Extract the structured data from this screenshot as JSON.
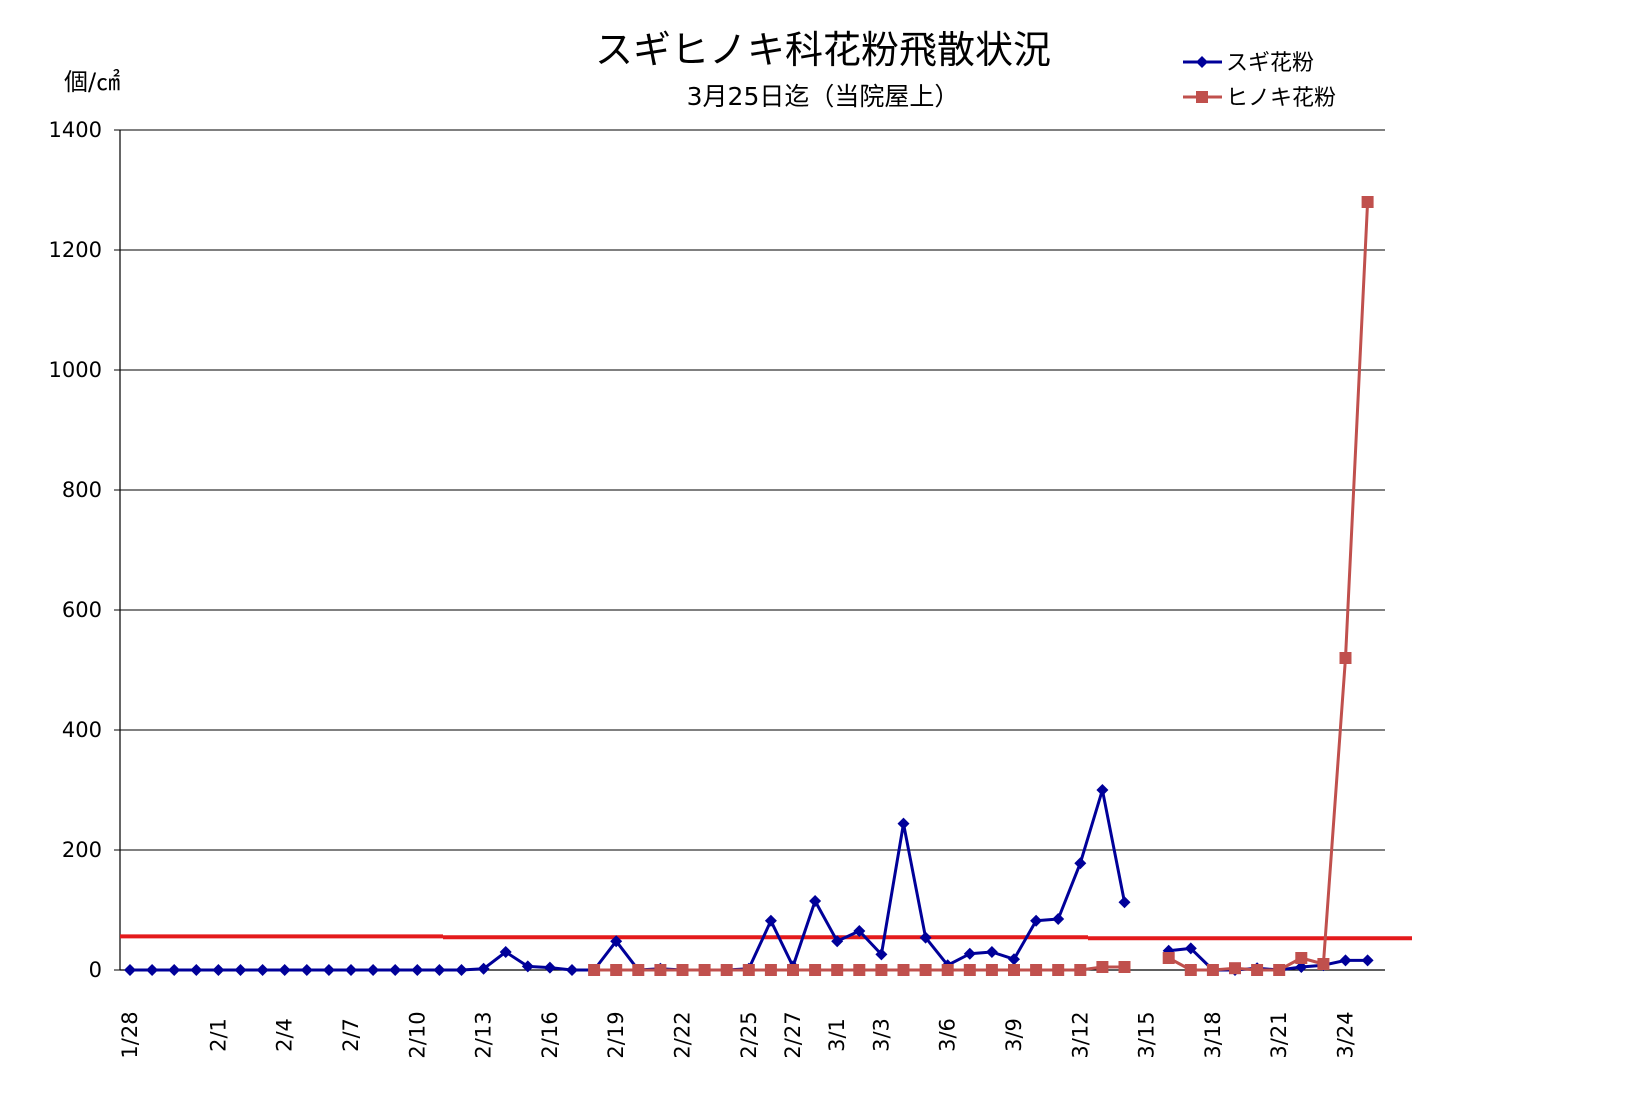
{
  "chart_data": {
    "type": "line",
    "title": "スギヒノキ科花粉飛散状況",
    "subtitle": "3月25日迄（当院屋上）",
    "ylabel": "個/㎠",
    "ylim": [
      0,
      1400
    ],
    "yticks": [
      "0",
      "200",
      "400",
      "600",
      "800",
      "1000",
      "1200",
      "1400"
    ],
    "grid": true,
    "legend_position": "top-right",
    "x": [
      "1/28",
      "1/29",
      "1/30",
      "1/31",
      "2/1",
      "2/2",
      "2/3",
      "2/4",
      "2/5",
      "2/6",
      "2/7",
      "2/8",
      "2/9",
      "2/10",
      "2/11",
      "2/12",
      "2/13",
      "2/14",
      "2/15",
      "2/16",
      "2/17",
      "2/18",
      "2/19",
      "2/20",
      "2/21",
      "2/22",
      "2/23",
      "2/24",
      "2/25",
      "2/26",
      "2/27",
      "2/28",
      "3/1",
      "3/2",
      "3/3",
      "3/4",
      "3/5",
      "3/6",
      "3/7",
      "3/8",
      "3/9",
      "3/10",
      "3/11",
      "3/12",
      "3/13",
      "3/14",
      "3/15",
      "3/16",
      "3/17",
      "3/18",
      "3/19",
      "3/20",
      "3/21",
      "3/22",
      "3/23",
      "3/24",
      "3/25"
    ],
    "xtick_labels": [
      "1/28",
      "2/1",
      "2/4",
      "2/7",
      "2/10",
      "2/13",
      "2/16",
      "2/19",
      "2/22",
      "2/25",
      "2/27",
      "3/1",
      "3/3",
      "3/6",
      "3/9",
      "3/12",
      "3/15",
      "3/18",
      "3/21",
      "3/24"
    ],
    "series": [
      {
        "name": "スギ花粉",
        "color": "#000099",
        "marker": "diamond",
        "values": [
          0,
          0,
          0,
          0,
          0,
          0,
          0,
          0,
          0,
          0,
          0,
          0,
          0,
          0,
          0,
          0,
          2,
          30,
          6,
          4,
          0,
          0,
          48,
          0,
          2,
          0,
          0,
          0,
          2,
          82,
          6,
          115,
          48,
          65,
          26,
          244,
          54,
          8,
          27,
          30,
          18,
          82,
          85,
          178,
          300,
          113,
          null,
          32,
          36,
          0,
          0,
          3,
          0,
          5,
          8,
          16,
          16
        ]
      },
      {
        "name": "ヒノキ花粉",
        "color": "#c0504d",
        "marker": "square",
        "values": [
          null,
          null,
          null,
          null,
          null,
          null,
          null,
          null,
          null,
          null,
          null,
          null,
          null,
          null,
          null,
          null,
          null,
          null,
          null,
          null,
          null,
          0,
          0,
          0,
          0,
          0,
          0,
          0,
          0,
          0,
          0,
          0,
          0,
          0,
          0,
          0,
          0,
          0,
          0,
          0,
          0,
          0,
          0,
          0,
          5,
          5,
          null,
          20,
          0,
          0,
          3,
          0,
          0,
          20,
          10,
          520,
          1280
        ]
      }
    ],
    "annotations": [
      {
        "type": "reference-line",
        "color": "#e41a1c",
        "start_value": 56,
        "end_value": 53
      }
    ]
  }
}
